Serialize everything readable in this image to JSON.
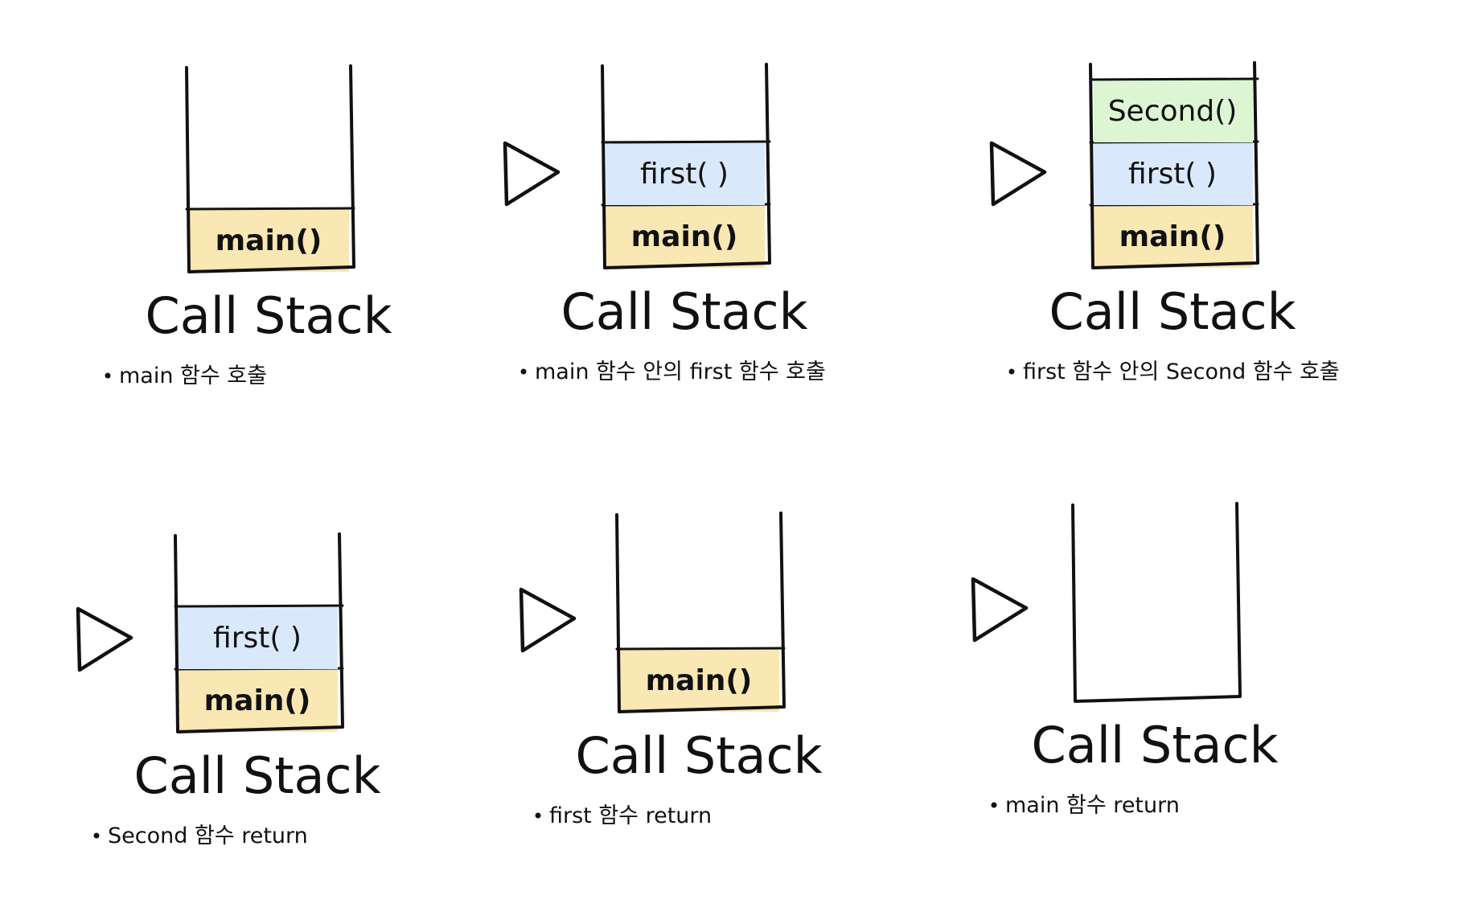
{
  "stack_title": "Call Stack",
  "colors": {
    "main_frame": "#f9e7b4",
    "first_frame": "#d9e8fb",
    "second_frame": "#dcf5d2",
    "ink": "#111111"
  },
  "panels": [
    {
      "frames": [
        "main()"
      ],
      "caption": "main 함수 호출"
    },
    {
      "frames": [
        "main()",
        "first( )"
      ],
      "caption": "main 함수 안의 first 함수 호출"
    },
    {
      "frames": [
        "main()",
        "first( )",
        "Second()"
      ],
      "caption": "first 함수 안의 Second 함수 호출"
    },
    {
      "frames": [
        "main()",
        "first( )"
      ],
      "caption": "Second 함수 return"
    },
    {
      "frames": [
        "main()"
      ],
      "caption": "first 함수 return"
    },
    {
      "frames": [],
      "caption": "main 함수 return"
    }
  ]
}
